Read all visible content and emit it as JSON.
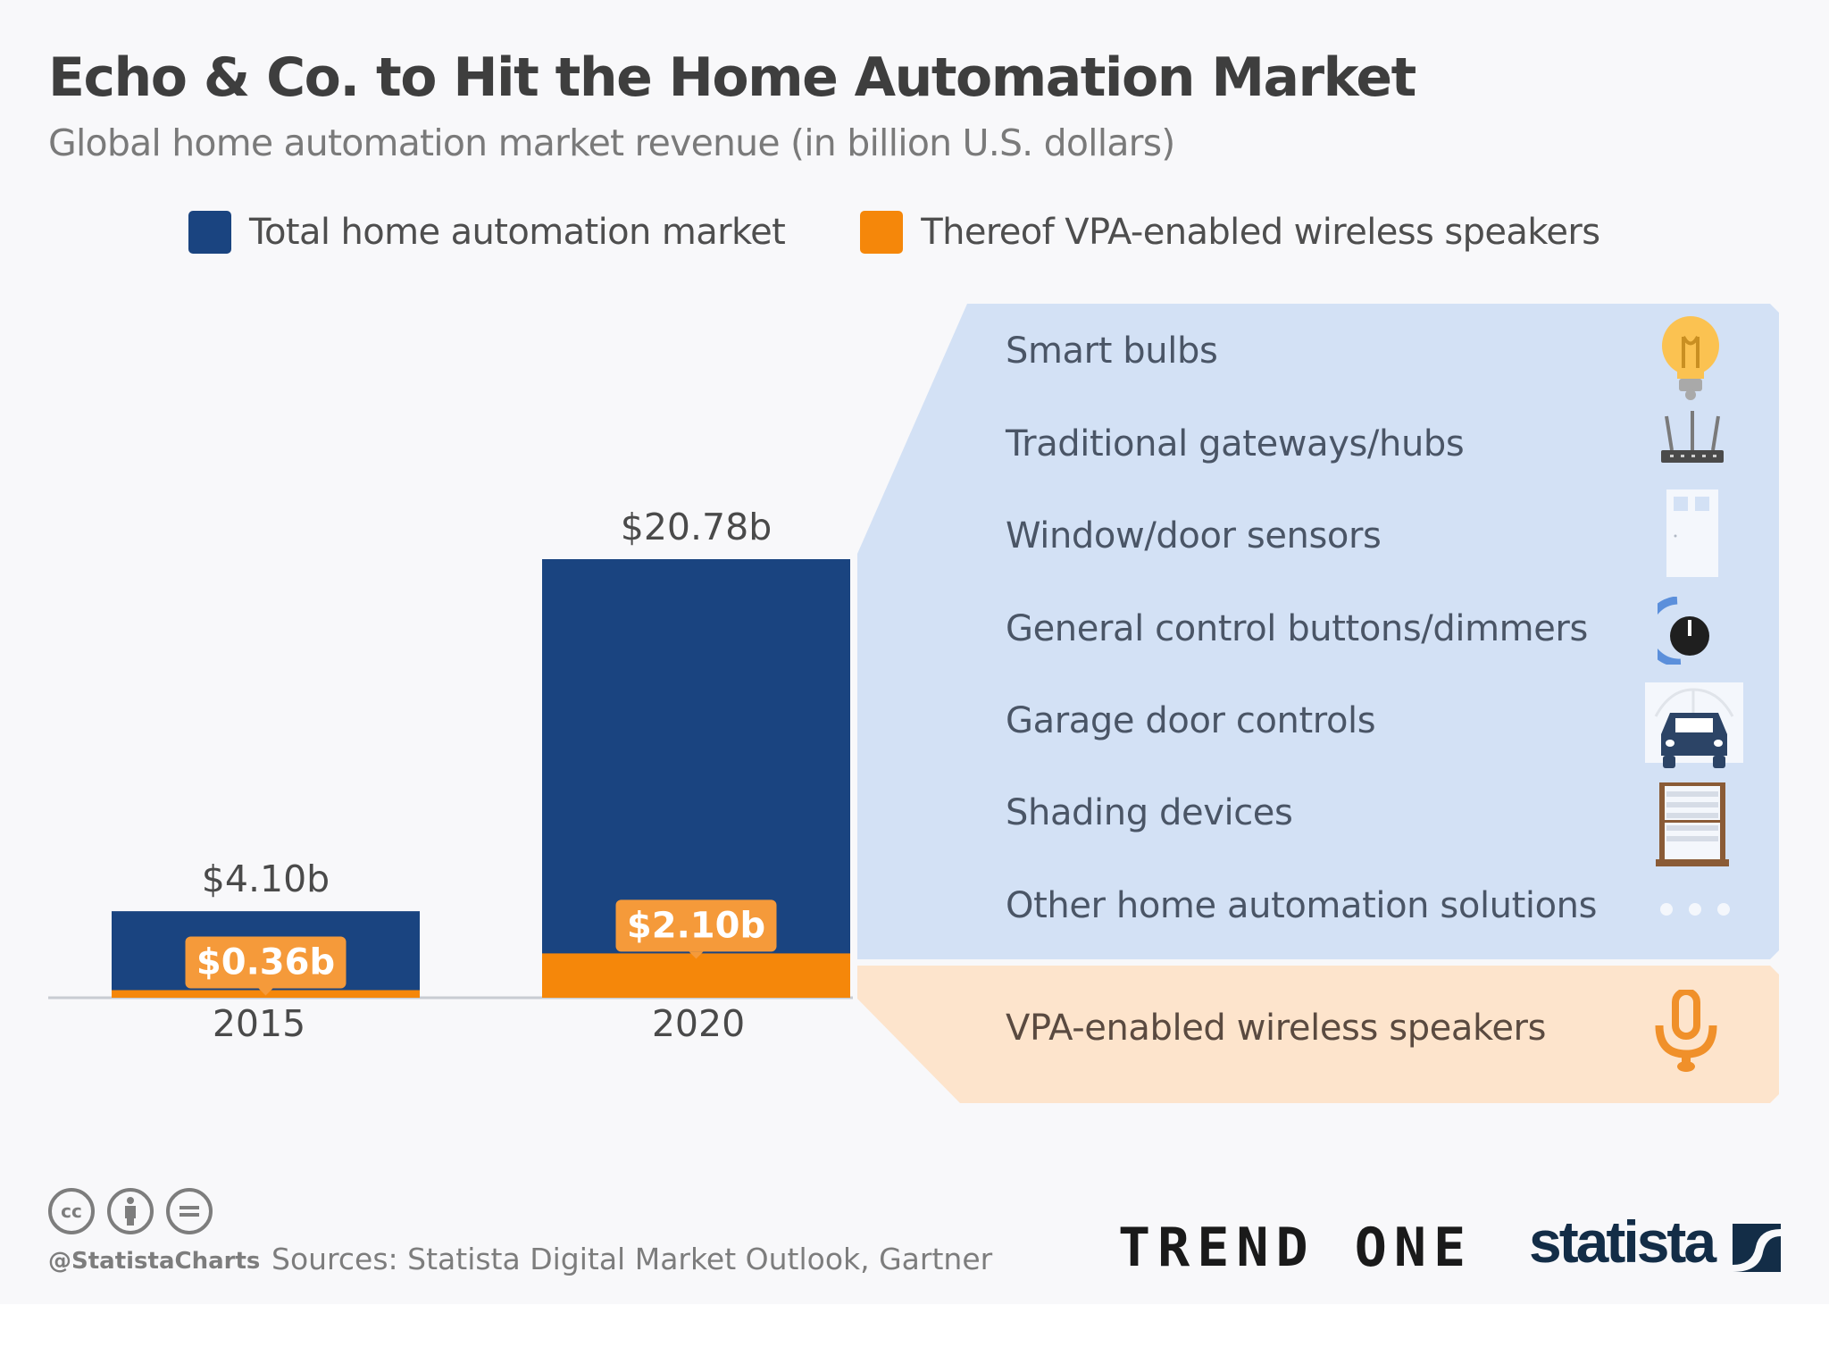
{
  "header": {
    "title": "Echo & Co. to Hit the Home Automation Market",
    "subtitle": "Global home automation market revenue (in billion U.S. dollars)"
  },
  "legend": [
    {
      "label": "Total home automation market",
      "color": "#1a4480"
    },
    {
      "label": "Thereof VPA-enabled wireless speakers",
      "color": "#f5870a"
    }
  ],
  "chart_data": {
    "type": "bar",
    "title": "Echo & Co. to Hit the Home Automation Market",
    "subtitle": "Global home automation market revenue (in billion U.S. dollars)",
    "xlabel": "",
    "ylabel": "",
    "categories": [
      "2015",
      "2020"
    ],
    "series": [
      {
        "name": "Total home automation market",
        "values": [
          4.1,
          20.78
        ],
        "labels": [
          "$4.10b",
          "$20.78b"
        ],
        "color": "#1a4480"
      },
      {
        "name": "Thereof VPA-enabled wireless speakers",
        "values": [
          0.36,
          2.1
        ],
        "labels": [
          "$0.36b",
          "$2.10b"
        ],
        "color": "#f5870a"
      }
    ],
    "ylim": [
      0,
      20.78
    ],
    "grid": false,
    "legend_position": "top"
  },
  "segments_panel": {
    "items": [
      {
        "label": "Smart bulbs",
        "icon": "lightbulb-icon"
      },
      {
        "label": "Traditional gateways/hubs",
        "icon": "router-icon"
      },
      {
        "label": "Window/door sensors",
        "icon": "door-icon"
      },
      {
        "label": "General control buttons/dimmers",
        "icon": "dimmer-knob-icon"
      },
      {
        "label": "Garage door controls",
        "icon": "garage-car-icon"
      },
      {
        "label": "Shading devices",
        "icon": "window-blinds-icon"
      },
      {
        "label": "Other home automation solutions",
        "icon": "more-dots-icon"
      }
    ],
    "vpa": {
      "label": "VPA-enabled wireless speakers",
      "icon": "microphone-icon"
    },
    "colors": {
      "blue_panel": "#d3e1f5",
      "orange_panel": "#fde4cc"
    }
  },
  "footer": {
    "handle": "@StatistaCharts",
    "source": "Sources: Statista Digital Market Outlook, Gartner",
    "cc_icons": [
      "cc",
      "by",
      "nd"
    ],
    "partner_logo": "TREND ONE",
    "brand_logo": "statista"
  }
}
